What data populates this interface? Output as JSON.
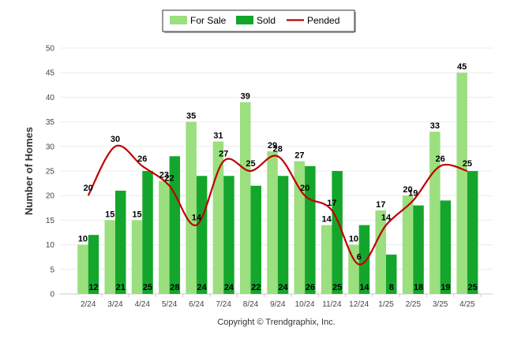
{
  "chart_data": {
    "type": "bar",
    "title": "",
    "xlabel": "",
    "ylabel": "Number of Homes",
    "ylim": [
      0,
      50
    ],
    "yticks": [
      0,
      5,
      10,
      15,
      20,
      25,
      30,
      35,
      40,
      45,
      50
    ],
    "grid": true,
    "legend_position": "top-center",
    "categories": [
      "2/24",
      "3/24",
      "4/24",
      "5/24",
      "6/24",
      "7/24",
      "8/24",
      "9/24",
      "10/24",
      "11/24",
      "12/24",
      "1/25",
      "2/25",
      "3/25",
      "4/25"
    ],
    "series": [
      {
        "name": "For Sale",
        "kind": "bar",
        "color": "#9bdf7f",
        "values": [
          10,
          15,
          15,
          23,
          35,
          31,
          39,
          29,
          27,
          14,
          10,
          17,
          20,
          33,
          45
        ]
      },
      {
        "name": "Sold",
        "kind": "bar",
        "color": "#14a62c",
        "values": [
          12,
          21,
          25,
          28,
          24,
          24,
          22,
          24,
          26,
          25,
          14,
          8,
          18,
          19,
          25
        ]
      },
      {
        "name": "Pended",
        "kind": "line",
        "color": "#c00000",
        "values": [
          20,
          30,
          26,
          22,
          14,
          27,
          25,
          28,
          20,
          17,
          6,
          14,
          19,
          26,
          25
        ]
      }
    ]
  },
  "footer": {
    "copyright": "Copyright © Trendgraphix, Inc."
  }
}
